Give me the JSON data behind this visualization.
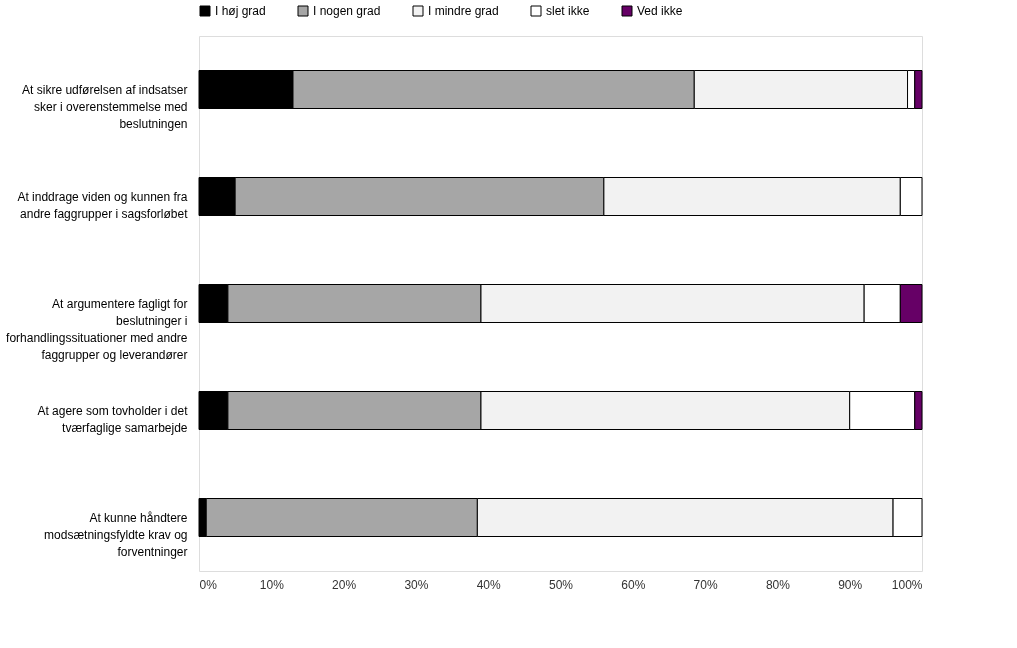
{
  "chart_data": {
    "type": "bar",
    "orientation": "horizontal",
    "stacked": true,
    "legend": "top",
    "grid": false,
    "categories": [
      "At sikre udførelsen af indsatser sker i overenstemmelse med beslutningen",
      "At inddrage viden og kunnen fra andre faggrupper i sagsforløbet",
      "At argumentere fagligt for beslutninger i forhandlingssituationer med andre faggrupper og leverandører",
      "At agere som tovholder i det tværfaglige samarbejde",
      "At kunne håndtere modsætningsfyldte krav og forventninger"
    ],
    "series": [
      {
        "name": "I høj grad",
        "color": "#000000",
        "values": [
          13,
          5,
          4,
          4,
          1
        ]
      },
      {
        "name": "I nogen grad",
        "color": "#a6a6a6",
        "values": [
          55.5,
          51,
          35,
          35,
          37.5
        ]
      },
      {
        "name": "I mindre grad",
        "color": "#f2f2f2",
        "values": [
          29.5,
          41,
          53,
          51,
          57.5
        ]
      },
      {
        "name": "slet ikke",
        "color": "#ffffff",
        "values": [
          1,
          3,
          5,
          9,
          4
        ]
      },
      {
        "name": "Ved ikke",
        "color": "#660066",
        "values": [
          1,
          null,
          3,
          1,
          null
        ]
      }
    ],
    "xlim": [
      0,
      100
    ],
    "xticks": [
      {
        "value": 0,
        "label": "0%"
      },
      {
        "value": 10,
        "label": "10%"
      },
      {
        "value": 20,
        "label": "20%"
      },
      {
        "value": 30,
        "label": "30%"
      },
      {
        "value": 40,
        "label": "40%"
      },
      {
        "value": 50,
        "label": "50%"
      },
      {
        "value": 60,
        "label": "60%"
      },
      {
        "value": 70,
        "label": "70%"
      },
      {
        "value": 80,
        "label": "80%"
      },
      {
        "value": 90,
        "label": "90%"
      },
      {
        "value": 100,
        "label": "100%"
      }
    ]
  }
}
